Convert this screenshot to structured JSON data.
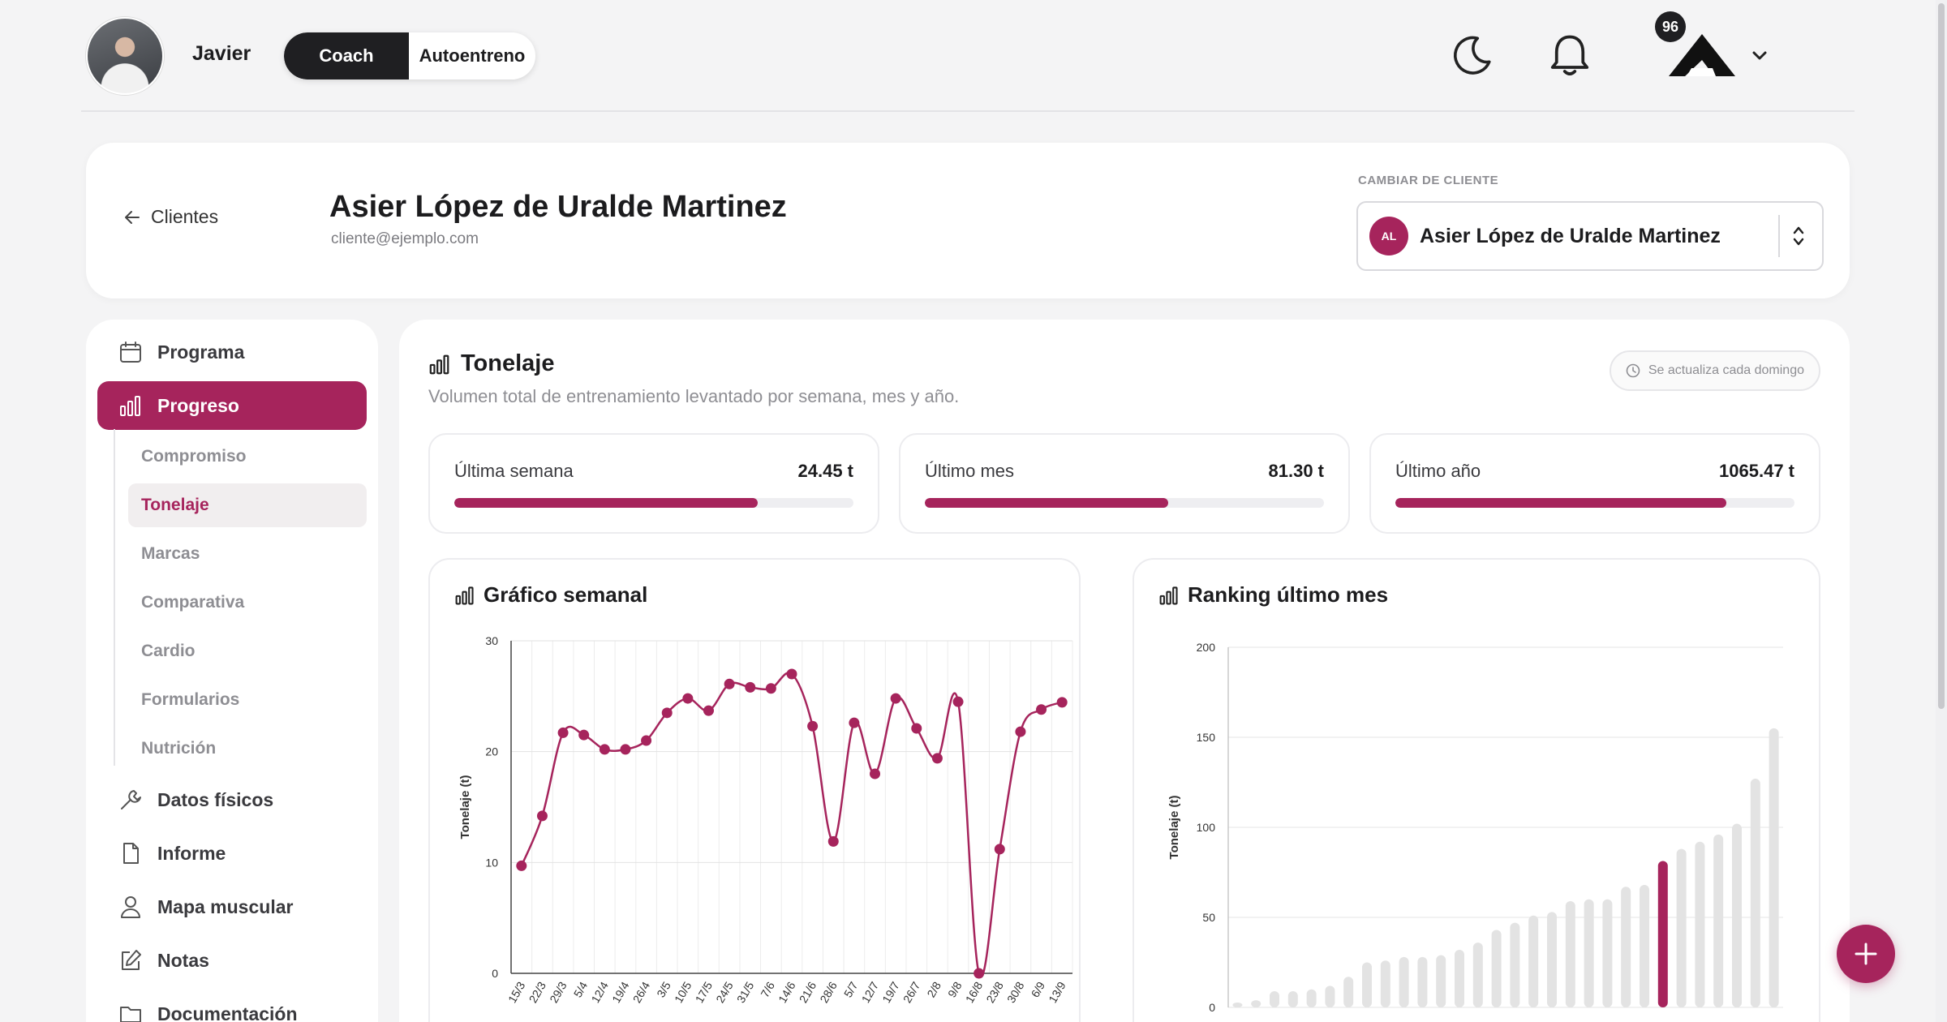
{
  "header": {
    "username": "Javier",
    "mode_options": [
      "Coach",
      "Autoentreno"
    ],
    "active_mode": "Coach",
    "notification_count": "96"
  },
  "client": {
    "back_label": "Clientes",
    "name": "Asier López de Uralde Martinez",
    "email": "cliente@ejemplo.com",
    "switch_label": "CAMBIAR DE CLIENTE",
    "switch_initials": "AL",
    "switch_value": "Asier López de Uralde Martinez"
  },
  "sidebar": {
    "items": [
      {
        "label": "Programa",
        "icon": "calendar-icon"
      },
      {
        "label": "Progreso",
        "icon": "bar-chart-icon",
        "active": true
      },
      {
        "label": "Datos físicos",
        "icon": "wrench-icon"
      },
      {
        "label": "Informe",
        "icon": "file-icon"
      },
      {
        "label": "Mapa muscular",
        "icon": "user-icon"
      },
      {
        "label": "Notas",
        "icon": "edit-icon"
      },
      {
        "label": "Documentación",
        "icon": "folder-icon"
      }
    ],
    "subitems": [
      {
        "label": "Compromiso"
      },
      {
        "label": "Tonelaje",
        "active": true
      },
      {
        "label": "Marcas"
      },
      {
        "label": "Comparativa"
      },
      {
        "label": "Cardio"
      },
      {
        "label": "Formularios"
      },
      {
        "label": "Nutrición"
      }
    ]
  },
  "main": {
    "title": "Tonelaje",
    "subtitle": "Volumen total de entrenamiento levantado por semana, mes y año.",
    "update_note": "Se actualiza cada domingo",
    "stats": [
      {
        "label": "Última semana",
        "value": "24.45 t",
        "progress": 0.76
      },
      {
        "label": "Último mes",
        "value": "81.30 t",
        "progress": 0.61
      },
      {
        "label": "Último año",
        "value": "1065.47 t",
        "progress": 0.83
      }
    ],
    "weekly_title": "Gráfico semanal",
    "ranking_title": "Ranking último mes"
  },
  "colors": {
    "accent": "#a6245c",
    "dark": "#1f1f22",
    "ranking_bar": "#e3e3e3"
  },
  "chart_data": [
    {
      "type": "line",
      "title": "Gráfico semanal",
      "ylabel": "Tonelaje (t)",
      "ylim": [
        0,
        30
      ],
      "yticks": [
        0,
        10,
        20,
        30
      ],
      "grid": true,
      "x": [
        "15/3",
        "22/3",
        "29/3",
        "5/4",
        "12/4",
        "19/4",
        "26/4",
        "3/5",
        "10/5",
        "17/5",
        "24/5",
        "31/5",
        "7/6",
        "14/6",
        "21/6",
        "28/6",
        "5/7",
        "12/7",
        "19/7",
        "26/7",
        "2/8",
        "9/8",
        "16/8",
        "23/8",
        "30/8",
        "6/9",
        "13/9"
      ],
      "values": [
        9.7,
        14.2,
        21.7,
        21.5,
        20.2,
        20.2,
        21.0,
        23.5,
        24.8,
        23.7,
        26.1,
        25.8,
        25.7,
        27.0,
        22.3,
        11.9,
        22.6,
        18.0,
        24.8,
        22.1,
        19.4,
        24.5,
        0.0,
        11.2,
        21.8,
        23.8,
        24.45
      ]
    },
    {
      "type": "bar",
      "title": "Ranking último mes",
      "ylabel": "Tonelaje (t)",
      "ylim": [
        0,
        200
      ],
      "yticks": [
        0,
        50,
        100,
        150,
        200
      ],
      "grid": true,
      "values": [
        2,
        4,
        9,
        9,
        10,
        12,
        17,
        25,
        26,
        28,
        28,
        29,
        32,
        36,
        43,
        47,
        51,
        53,
        59,
        60,
        60,
        67,
        68,
        81.3,
        88,
        92,
        96,
        102,
        127,
        155
      ],
      "highlight_index": 23
    }
  ]
}
